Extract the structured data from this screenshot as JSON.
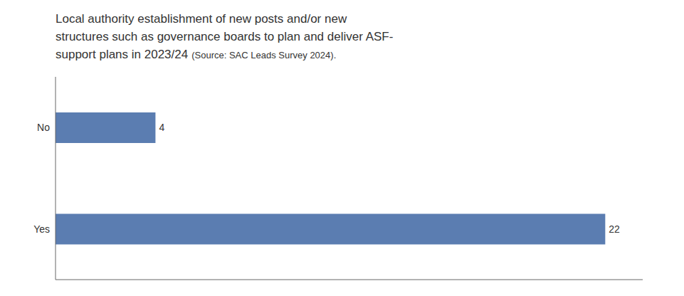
{
  "chart_data": {
    "type": "bar",
    "orientation": "horizontal",
    "title": "Local authority establishment of new posts and/or new\nstructures such as governance boards to plan and deliver ASF-\nsupport plans in 2023/24",
    "annotations": [
      "(Source: SAC Leads Survey 2024)."
    ],
    "categories": [
      "Yes",
      "No"
    ],
    "values": [
      22,
      4
    ],
    "color": "#5B7DB1",
    "xlim": [
      0,
      23.5
    ],
    "tick_labels": "y",
    "data_labels": true,
    "grid": false
  }
}
